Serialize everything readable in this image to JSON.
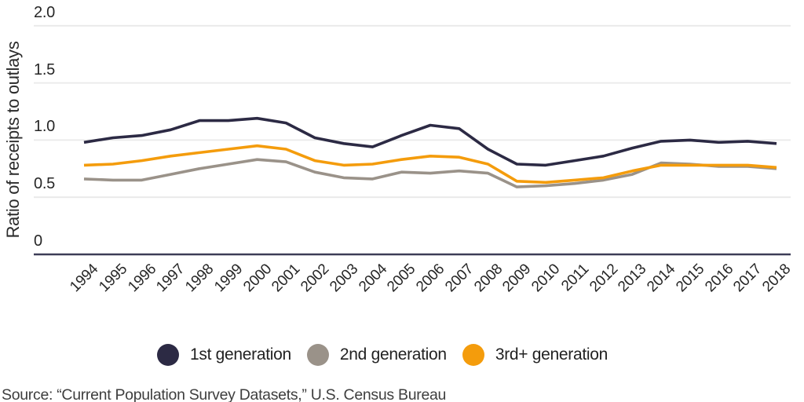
{
  "chart_data": {
    "type": "line",
    "ylabel": "Ratio of receipts to outlays",
    "x": [
      1994,
      1995,
      1996,
      1997,
      1998,
      1999,
      2000,
      2001,
      2002,
      2003,
      2004,
      2005,
      2006,
      2007,
      2008,
      2009,
      2010,
      2011,
      2012,
      2013,
      2014,
      2015,
      2016,
      2017,
      2018
    ],
    "series": [
      {
        "name": "1st generation",
        "color": "#2c2a44",
        "values": [
          0.98,
          1.02,
          1.04,
          1.09,
          1.17,
          1.17,
          1.19,
          1.15,
          1.02,
          0.97,
          0.94,
          1.04,
          1.13,
          1.1,
          0.92,
          0.79,
          0.78,
          0.82,
          0.86,
          0.93,
          0.99,
          1.0,
          0.98,
          0.99,
          0.97
        ]
      },
      {
        "name": "2nd generation",
        "color": "#9a9289",
        "values": [
          0.66,
          0.65,
          0.65,
          0.7,
          0.75,
          0.79,
          0.83,
          0.81,
          0.72,
          0.67,
          0.66,
          0.72,
          0.71,
          0.73,
          0.71,
          0.59,
          0.6,
          0.62,
          0.65,
          0.7,
          0.8,
          0.79,
          0.77,
          0.77,
          0.75
        ]
      },
      {
        "name": "3rd+ generation",
        "color": "#f49c0c",
        "values": [
          0.78,
          0.79,
          0.82,
          0.86,
          0.89,
          0.92,
          0.95,
          0.92,
          0.82,
          0.78,
          0.79,
          0.83,
          0.86,
          0.85,
          0.79,
          0.64,
          0.63,
          0.65,
          0.67,
          0.73,
          0.78,
          0.78,
          0.78,
          0.78,
          0.76
        ]
      }
    ],
    "ylim": [
      0,
      2.0
    ],
    "yticks": [
      {
        "value": 0.0,
        "label": "0"
      },
      {
        "value": 0.5,
        "label": "0.5"
      },
      {
        "value": 1.0,
        "label": "1.0"
      },
      {
        "value": 1.5,
        "label": "1.5"
      },
      {
        "value": 2.0,
        "label": "2.0"
      }
    ],
    "grid": "horizontal",
    "legend_position": "bottom"
  },
  "source_note": "Source: “Current Population Survey Datasets,” U.S. Census Bureau",
  "colors": {
    "gridline": "#e9e9e9",
    "axis_line": "#3d3d57",
    "tick_text": "#262626",
    "source_text": "#3e3e3e"
  }
}
